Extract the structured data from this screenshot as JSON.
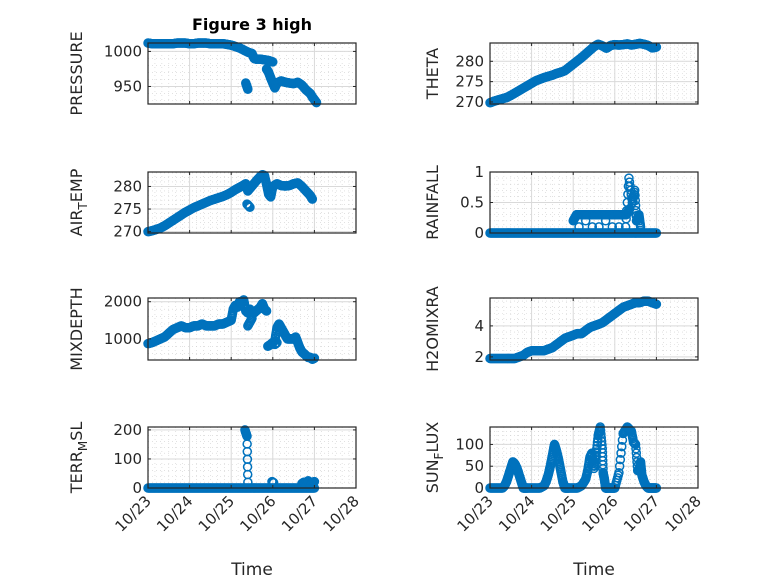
{
  "figure": {
    "title": "Figure 3 high",
    "marker_color": "#0072BD",
    "axes_color": "#262626",
    "grid_color": "#d9d9d9"
  },
  "chart_data": [
    {
      "type": "scatter",
      "panel": "top-left",
      "title": "Figure 3 high",
      "ylabel": "PRESSURE",
      "ylabel_sub": null,
      "xlabel": "",
      "xlim": [
        0,
        5
      ],
      "xticks": [
        "10/23",
        "10/24",
        "10/25",
        "10/26",
        "10/27",
        "10/28"
      ],
      "show_xticklabels": false,
      "ylim": [
        925,
        1012
      ],
      "yticks": [
        950,
        1000
      ],
      "grid": "major+minor",
      "x": [
        0.0,
        0.1,
        0.2,
        0.3,
        0.4,
        0.5,
        0.6,
        0.7,
        0.8,
        0.9,
        1.0,
        1.1,
        1.2,
        1.3,
        1.4,
        1.5,
        1.6,
        1.7,
        1.8,
        1.9,
        2.0,
        2.1,
        2.2,
        2.3,
        2.4,
        2.5,
        2.55,
        2.6,
        2.7,
        2.8,
        2.9,
        3.0,
        2.35,
        2.4,
        2.85,
        2.9,
        2.95,
        3.0,
        3.05,
        3.1,
        3.2,
        3.3,
        3.4,
        3.5,
        3.6,
        3.7,
        3.8,
        3.9,
        3.95,
        4.0,
        4.05
      ],
      "y": [
        1012,
        1011,
        1011,
        1011,
        1011,
        1011,
        1011,
        1012,
        1012,
        1012,
        1011,
        1011,
        1012,
        1012,
        1012,
        1011,
        1011,
        1011,
        1011,
        1010,
        1009,
        1007,
        1005,
        1002,
        999,
        997,
        990,
        989,
        989,
        988,
        987,
        985,
        955,
        946,
        975,
        970,
        962,
        955,
        948,
        955,
        958,
        956,
        955,
        954,
        956,
        952,
        945,
        940,
        935,
        931,
        927
      ]
    },
    {
      "type": "scatter",
      "panel": "top-right",
      "ylabel": "THETA",
      "xlabel": "",
      "xlim": [
        0,
        5
      ],
      "xticks": [
        "10/23",
        "10/24",
        "10/25",
        "10/26",
        "10/27",
        "10/28"
      ],
      "show_xticklabels": false,
      "ylim": [
        269.5,
        284.5
      ],
      "yticks": [
        270,
        275,
        280
      ],
      "grid": "major+minor",
      "x": [
        0.0,
        0.1,
        0.2,
        0.3,
        0.4,
        0.5,
        0.6,
        0.7,
        0.8,
        0.9,
        1.0,
        1.1,
        1.2,
        1.3,
        1.4,
        1.5,
        1.6,
        1.7,
        1.8,
        1.9,
        2.0,
        2.1,
        2.2,
        2.3,
        2.4,
        2.5,
        2.6,
        2.7,
        2.8,
        2.9,
        3.0,
        3.1,
        3.2,
        3.3,
        3.4,
        3.5,
        3.6,
        3.7,
        3.8,
        3.9,
        4.0
      ],
      "y": [
        269.8,
        270.2,
        270.5,
        270.8,
        271.1,
        271.6,
        272.2,
        272.8,
        273.4,
        274.0,
        274.6,
        275.2,
        275.6,
        276.0,
        276.3,
        276.6,
        277.0,
        277.3,
        277.7,
        278.5,
        279.3,
        280.1,
        280.9,
        281.8,
        282.7,
        283.6,
        284.2,
        283.8,
        283.2,
        283.9,
        284.1,
        284.0,
        284.1,
        284.3,
        284.0,
        284.2,
        284.4,
        284.2,
        283.9,
        283.3,
        283.5
      ]
    },
    {
      "type": "scatter",
      "panel": "row2-left",
      "ylabel": "AIR",
      "ylabel_sub": "T",
      "ylabel_rest": "EMP",
      "xlabel": "",
      "xlim": [
        0,
        5
      ],
      "xticks": [
        "10/23",
        "10/24",
        "10/25",
        "10/26",
        "10/27",
        "10/28"
      ],
      "show_xticklabels": false,
      "ylim": [
        269.7,
        283.2
      ],
      "yticks": [
        270,
        275,
        280
      ],
      "grid": "major+minor",
      "x": [
        0.0,
        0.1,
        0.2,
        0.3,
        0.4,
        0.5,
        0.6,
        0.7,
        0.8,
        0.9,
        1.0,
        1.1,
        1.2,
        1.3,
        1.4,
        1.5,
        1.6,
        1.7,
        1.8,
        1.9,
        2.0,
        2.1,
        2.2,
        2.3,
        2.35,
        2.4,
        2.5,
        2.6,
        2.7,
        2.75,
        2.8,
        2.85,
        2.9,
        2.95,
        3.0,
        3.1,
        3.2,
        3.3,
        3.4,
        3.5,
        3.6,
        3.7,
        3.8,
        3.9,
        3.95,
        2.38,
        2.45
      ],
      "y": [
        270.0,
        270.2,
        270.5,
        270.8,
        271.3,
        271.9,
        272.5,
        273.1,
        273.7,
        274.3,
        274.8,
        275.3,
        275.7,
        276.1,
        276.5,
        276.9,
        277.2,
        277.5,
        277.8,
        278.2,
        278.7,
        279.3,
        279.8,
        280.3,
        280.6,
        279.0,
        280.1,
        281.2,
        282.2,
        282.6,
        282.4,
        280.5,
        278.3,
        277.7,
        280.0,
        280.6,
        280.2,
        280.1,
        280.2,
        280.6,
        280.8,
        280.0,
        279.0,
        278.0,
        277.2,
        276.1,
        275.4
      ]
    },
    {
      "type": "scatter",
      "panel": "row2-right",
      "ylabel": "RAINFALL",
      "xlabel": "",
      "xlim": [
        0,
        5
      ],
      "xticks": [
        "10/23",
        "10/24",
        "10/25",
        "10/26",
        "10/27",
        "10/28"
      ],
      "show_xticklabels": false,
      "ylim": [
        0,
        1
      ],
      "yticks": [
        0,
        0.5,
        1
      ],
      "grid": "major+minor",
      "x": [
        0.0,
        0.1,
        0.2,
        0.3,
        0.4,
        0.5,
        0.6,
        0.7,
        0.8,
        0.9,
        1.0,
        1.1,
        1.2,
        1.3,
        1.4,
        1.5,
        1.6,
        1.7,
        1.8,
        1.9,
        2.0,
        2.1,
        2.2,
        2.3,
        2.4,
        2.5,
        2.6,
        2.7,
        2.8,
        2.9,
        3.0,
        3.1,
        3.2,
        3.3,
        3.4,
        3.5,
        3.6,
        3.7,
        3.8,
        3.9,
        4.0,
        2.0,
        2.08,
        2.12,
        2.2,
        2.26,
        2.32,
        2.4,
        2.48,
        2.56,
        2.64,
        2.72,
        2.8,
        2.88,
        2.96,
        3.04,
        3.12,
        3.2,
        3.28,
        3.36,
        2.14,
        2.3,
        2.46,
        2.62,
        2.78,
        2.94,
        3.1,
        3.26,
        3.34,
        3.42,
        3.48,
        3.52,
        3.58,
        3.62
      ],
      "y": [
        0,
        0,
        0,
        0,
        0,
        0,
        0,
        0,
        0,
        0,
        0,
        0,
        0,
        0,
        0,
        0,
        0,
        0,
        0,
        0,
        0,
        0,
        0,
        0,
        0,
        0,
        0,
        0,
        0,
        0,
        0,
        0,
        0,
        0,
        0,
        0,
        0,
        0,
        0,
        0,
        0,
        0.2,
        0.3,
        0.3,
        0.3,
        0.3,
        0.3,
        0.3,
        0.3,
        0.3,
        0.3,
        0.3,
        0.3,
        0.3,
        0.3,
        0.3,
        0.3,
        0.3,
        0.3,
        0.4,
        0.1,
        0.2,
        0.1,
        0.1,
        0.2,
        0.1,
        0.1,
        0.1,
        0.9,
        0.5,
        0.7,
        0.2,
        0.3,
        0.1
      ]
    },
    {
      "type": "scatter",
      "panel": "row3-left",
      "ylabel": "MIXDEPTH",
      "xlabel": "",
      "xlim": [
        0,
        5
      ],
      "xticks": [
        "10/23",
        "10/24",
        "10/25",
        "10/26",
        "10/27",
        "10/28"
      ],
      "show_xticklabels": false,
      "ylim": [
        430,
        2100
      ],
      "yticks": [
        1000,
        2000
      ],
      "grid": "major+minor",
      "x": [
        0.0,
        0.1,
        0.2,
        0.3,
        0.4,
        0.5,
        0.6,
        0.7,
        0.8,
        0.9,
        1.0,
        1.1,
        1.2,
        1.3,
        1.4,
        1.5,
        1.6,
        1.7,
        1.8,
        1.9,
        2.0,
        2.05,
        2.1,
        2.15,
        2.2,
        2.25,
        2.3,
        2.35,
        2.4,
        2.45,
        2.5,
        2.55,
        2.6,
        2.65,
        2.7,
        2.75,
        2.8,
        2.85,
        2.4,
        2.5,
        2.88,
        2.95,
        3.0,
        3.05,
        3.1,
        3.15,
        3.2,
        3.25,
        3.3,
        3.35,
        3.4,
        3.45,
        3.5,
        3.55,
        3.6,
        3.65,
        3.7,
        3.75,
        3.8,
        3.85,
        3.9,
        3.95,
        4.0,
        3.05,
        3.1
      ],
      "y": [
        870,
        900,
        950,
        1000,
        1050,
        1150,
        1250,
        1300,
        1350,
        1300,
        1300,
        1350,
        1350,
        1400,
        1350,
        1350,
        1350,
        1400,
        1400,
        1450,
        1500,
        1800,
        1900,
        1850,
        2000,
        1950,
        2050,
        1750,
        1700,
        1800,
        1700,
        1700,
        1750,
        1800,
        1850,
        1950,
        1800,
        1750,
        1350,
        1550,
        800,
        850,
        900,
        950,
        1300,
        1400,
        1300,
        1200,
        1100,
        1000,
        1000,
        1000,
        1000,
        1050,
        900,
        750,
        650,
        600,
        550,
        500,
        500,
        450,
        480,
        850,
        900
      ]
    },
    {
      "type": "scatter",
      "panel": "row3-right",
      "ylabel": "H2OMIXRA",
      "xlabel": "",
      "xlim": [
        0,
        5
      ],
      "xticks": [
        "10/23",
        "10/24",
        "10/25",
        "10/26",
        "10/27",
        "10/28"
      ],
      "show_xticklabels": false,
      "ylim": [
        1.8,
        5.8
      ],
      "yticks": [
        2,
        4
      ],
      "grid": "major+minor",
      "x": [
        0.0,
        0.1,
        0.2,
        0.3,
        0.4,
        0.5,
        0.6,
        0.7,
        0.8,
        0.9,
        1.0,
        1.1,
        1.2,
        1.3,
        1.4,
        1.5,
        1.6,
        1.7,
        1.8,
        1.9,
        2.0,
        2.1,
        2.2,
        2.3,
        2.4,
        2.5,
        2.6,
        2.7,
        2.8,
        2.9,
        3.0,
        3.1,
        3.2,
        3.3,
        3.4,
        3.5,
        3.6,
        3.7,
        3.8,
        3.9,
        4.0
      ],
      "y": [
        1.9,
        1.9,
        1.9,
        1.9,
        1.9,
        1.9,
        1.9,
        2.0,
        2.1,
        2.3,
        2.4,
        2.4,
        2.4,
        2.4,
        2.5,
        2.6,
        2.8,
        3.0,
        3.2,
        3.3,
        3.4,
        3.5,
        3.5,
        3.7,
        3.9,
        4.0,
        4.1,
        4.2,
        4.4,
        4.6,
        4.8,
        5.0,
        5.2,
        5.3,
        5.4,
        5.5,
        5.5,
        5.6,
        5.6,
        5.5,
        5.4
      ]
    },
    {
      "type": "scatter",
      "panel": "row4-left",
      "ylabel": "TERR",
      "ylabel_sub": "M",
      "ylabel_rest": "SL",
      "xlabel": "Time",
      "xlim": [
        0,
        5
      ],
      "xticks": [
        "10/23",
        "10/24",
        "10/25",
        "10/26",
        "10/27",
        "10/28"
      ],
      "show_xticklabels": true,
      "ylim": [
        0,
        210
      ],
      "yticks": [
        0,
        100,
        200
      ],
      "grid": "major+minor",
      "x": [
        0.0,
        0.1,
        0.2,
        0.3,
        0.4,
        0.5,
        0.6,
        0.7,
        0.8,
        0.9,
        1.0,
        1.1,
        1.2,
        1.3,
        1.4,
        1.5,
        1.6,
        1.7,
        1.8,
        1.9,
        2.0,
        2.1,
        2.2,
        2.3,
        2.4,
        2.5,
        2.6,
        2.7,
        2.8,
        2.9,
        3.0,
        3.1,
        3.2,
        3.3,
        3.4,
        3.5,
        3.6,
        3.7,
        3.8,
        3.9,
        4.0,
        2.33,
        2.38,
        2.4,
        2.98,
        3.02,
        3.7,
        3.75,
        3.8,
        3.85,
        3.9,
        3.95,
        4.0
      ],
      "y": [
        0,
        0,
        0,
        0,
        0,
        0,
        0,
        0,
        0,
        0,
        0,
        0,
        0,
        0,
        0,
        0,
        0,
        0,
        0,
        0,
        0,
        0,
        0,
        0,
        0,
        0,
        0,
        0,
        0,
        0,
        0,
        0,
        0,
        0,
        0,
        0,
        0,
        0,
        0,
        0,
        0,
        200,
        178,
        20,
        22,
        18,
        15,
        20,
        8,
        25,
        5,
        18,
        22
      ]
    },
    {
      "type": "scatter",
      "panel": "row4-right",
      "ylabel": "SUN",
      "ylabel_sub": "F",
      "ylabel_rest": "LUX",
      "xlabel": "Time",
      "xlim": [
        0,
        5
      ],
      "xticks": [
        "10/23",
        "10/24",
        "10/25",
        "10/26",
        "10/27",
        "10/28"
      ],
      "show_xticklabels": true,
      "ylim": [
        0,
        140
      ],
      "yticks": [
        0,
        50,
        100
      ],
      "grid": "major+minor",
      "x": [
        0.0,
        0.1,
        0.2,
        0.3,
        0.35,
        0.4,
        0.45,
        0.5,
        0.55,
        0.6,
        0.65,
        0.7,
        0.75,
        0.8,
        0.85,
        0.9,
        1.0,
        1.1,
        1.2,
        1.3,
        1.35,
        1.4,
        1.45,
        1.5,
        1.55,
        1.6,
        1.65,
        1.7,
        1.75,
        1.8,
        1.85,
        1.9,
        2.0,
        2.1,
        2.2,
        2.3,
        2.35,
        2.4,
        2.45,
        2.5,
        2.55,
        2.6,
        2.65,
        2.7,
        2.72,
        2.75,
        2.78,
        2.8,
        2.85,
        2.9,
        2.95,
        3.0,
        3.1,
        3.2,
        3.3,
        3.35,
        3.4,
        3.45,
        3.5,
        3.55,
        3.6,
        3.62,
        3.65,
        3.7,
        3.75,
        3.8,
        3.85,
        3.9,
        3.95,
        4.0
      ],
      "y": [
        0,
        0,
        0,
        0,
        5,
        15,
        30,
        45,
        60,
        55,
        45,
        30,
        15,
        0,
        0,
        0,
        0,
        0,
        0,
        5,
        15,
        30,
        50,
        75,
        100,
        85,
        65,
        40,
        15,
        0,
        0,
        0,
        0,
        0,
        5,
        20,
        40,
        70,
        80,
        45,
        75,
        120,
        140,
        90,
        35,
        20,
        0,
        0,
        0,
        0,
        0,
        0,
        35,
        125,
        140,
        135,
        130,
        105,
        100,
        40,
        45,
        60,
        30,
        15,
        5,
        0,
        0,
        0,
        0,
        0
      ]
    }
  ]
}
